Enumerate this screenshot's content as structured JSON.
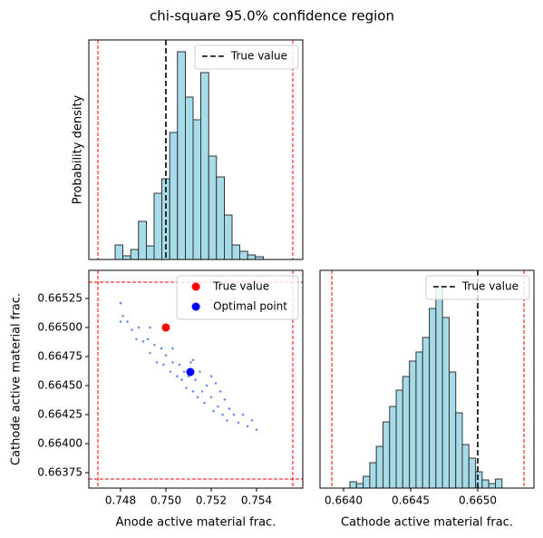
{
  "title": "chi-square 95.0% confidence region",
  "chart_data": [
    {
      "type": "histogram",
      "ylabel": "Probability density",
      "bins": [
        0.74776,
        0.7481,
        0.74845,
        0.74879,
        0.74914,
        0.74948,
        0.74982,
        0.75017,
        0.75051,
        0.75086,
        0.7512,
        0.75154,
        0.75189,
        0.75223,
        0.75258,
        0.75292,
        0.75326,
        0.75361,
        0.75395,
        0.7543
      ],
      "values": [
        16,
        4,
        11,
        42,
        15,
        73,
        89,
        140,
        229,
        179,
        154,
        206,
        114,
        91,
        49,
        16,
        9,
        5,
        3
      ],
      "color": "#a6dbea",
      "edgecolor": "#333333",
      "xlim": [
        0.7466,
        0.75604
      ],
      "ylim": [
        0,
        242
      ],
      "bounds_x": [
        0.747,
        0.7556
      ],
      "bounds_color": "#ff0000",
      "ref_lines": [
        {
          "name": "True value",
          "value": 0.75,
          "color": "#000000"
        }
      ],
      "legend": "upper right"
    },
    {
      "type": "scatter",
      "xlabel": "Anode active material frac.",
      "ylabel": "Cathode active material frac.",
      "x": [
        0.748,
        0.7481,
        0.748,
        0.7483,
        0.7485,
        0.7487,
        0.7488,
        0.749,
        0.7492,
        0.7493,
        0.7495,
        0.7496,
        0.7498,
        0.7499,
        0.75,
        0.7502,
        0.7503,
        0.7505,
        0.7506,
        0.7507,
        0.7508,
        0.7509,
        0.751,
        0.7511,
        0.7512,
        0.7513,
        0.7514,
        0.7515,
        0.7516,
        0.7517,
        0.7518,
        0.752,
        0.7521,
        0.7522,
        0.7523,
        0.7524,
        0.7525,
        0.7526,
        0.7527,
        0.7528,
        0.753,
        0.7532,
        0.7534,
        0.7536,
        0.7538,
        0.754,
        0.7493,
        0.7503,
        0.7512,
        0.752
      ],
      "y": [
        0.66521,
        0.6651,
        0.66505,
        0.66505,
        0.66498,
        0.6649,
        0.665,
        0.66488,
        0.6649,
        0.66478,
        0.66485,
        0.6647,
        0.66482,
        0.66468,
        0.66476,
        0.66462,
        0.6647,
        0.66458,
        0.66468,
        0.66455,
        0.66462,
        0.66448,
        0.66458,
        0.6647,
        0.66445,
        0.66455,
        0.6644,
        0.66462,
        0.66445,
        0.66435,
        0.6645,
        0.6644,
        0.66428,
        0.66452,
        0.66432,
        0.66445,
        0.66425,
        0.66438,
        0.6642,
        0.6643,
        0.66425,
        0.66418,
        0.66425,
        0.66415,
        0.6642,
        0.66412,
        0.665,
        0.66482,
        0.66472,
        0.66458
      ],
      "color": "#4169e1",
      "series": [
        {
          "name": "True value",
          "color": "#ff0000",
          "x": [
            0.75
          ],
          "y": [
            0.665
          ]
        },
        {
          "name": "Optimal point",
          "color": "#0000ff",
          "x": [
            0.75108
          ],
          "y": [
            0.664617
          ]
        }
      ],
      "xlim": [
        0.7466,
        0.75604
      ],
      "ylim": [
        0.663617,
        0.665492
      ],
      "xticks": [
        0.748,
        {
          "value": 0.75,
          "label": "0.750"
        },
        0.752,
        0.754
      ],
      "yticks": [
        0.66375,
        {
          "value": 0.664,
          "label": "0.66400"
        },
        0.66425,
        {
          "value": 0.6645,
          "label": "0.66450"
        },
        0.66475,
        {
          "value": 0.665,
          "label": "0.66500"
        },
        0.66525
      ],
      "bounds_x": [
        0.747,
        0.7556
      ],
      "bounds_y": [
        0.663695,
        0.66539
      ],
      "bounds_color": "#ff0000",
      "legend": "upper right"
    },
    {
      "type": "histogram",
      "xlabel": "Cathode active material frac.",
      "bins": [
        0.664047,
        0.664096,
        0.664146,
        0.664195,
        0.664244,
        0.664294,
        0.664343,
        0.664392,
        0.664441,
        0.664491,
        0.66454,
        0.664589,
        0.664639,
        0.664688,
        0.664737,
        0.664787,
        0.664836,
        0.664885,
        0.664934,
        0.664984,
        0.665033,
        0.665082,
        0.665132,
        0.665181
      ],
      "values": [
        7,
        5,
        13,
        28,
        46,
        73,
        90,
        108,
        123,
        140,
        150,
        166,
        198,
        222,
        188,
        128,
        83,
        48,
        33,
        18,
        9,
        5,
        10
      ],
      "color": "#a6dbea",
      "edgecolor": "#333333",
      "xlim": [
        0.663824,
        0.665419
      ],
      "ylim": [
        0,
        240
      ],
      "xticks": [
        {
          "value": 0.664,
          "label": "0.6640"
        },
        0.6645,
        {
          "value": 0.665,
          "label": "0.6650"
        }
      ],
      "bounds_x": [
        0.663912,
        0.665345
      ],
      "bounds_color": "#ff0000",
      "ref_lines": [
        {
          "name": "True value",
          "value": 0.665,
          "color": "#000000"
        }
      ],
      "legend": "upper right"
    }
  ]
}
